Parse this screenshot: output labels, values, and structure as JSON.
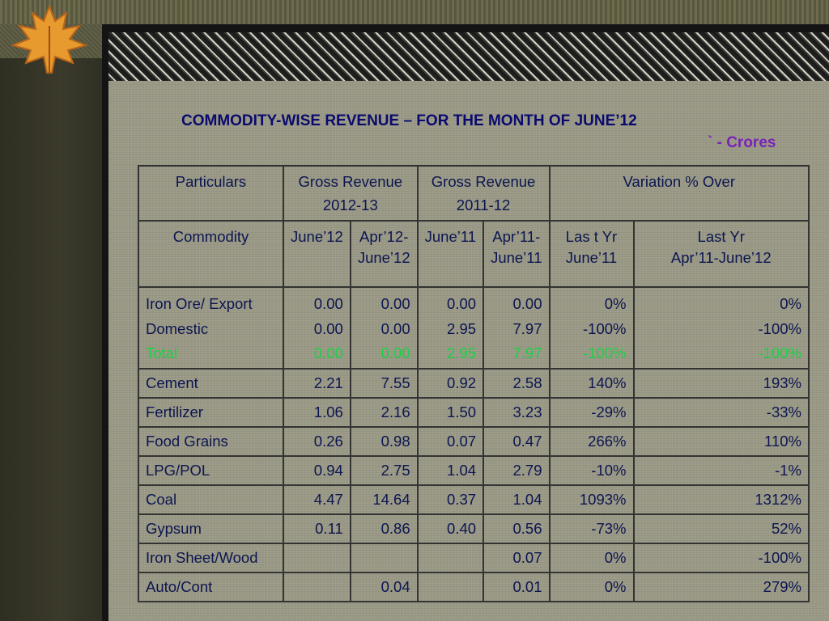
{
  "slide": {
    "title": "COMMODITY-WISE REVENUE – FOR THE MONTH OF JUNE’12",
    "units": "` - Crores"
  },
  "table": {
    "header1": {
      "particulars": "Particulars",
      "gross_2012_13": [
        "Gross Revenue",
        "2012-13"
      ],
      "gross_2011_12": [
        "Gross Revenue",
        "2011-12"
      ],
      "variation": "Variation  % Over"
    },
    "header2": {
      "commodity": "Commodity",
      "june12": "June’12",
      "apr12_june12": "Apr’12-June’12",
      "june11": "June’11",
      "apr11_june11": "Apr’11-June’11",
      "last_yr_june11": [
        "Las t Yr",
        "June’11"
      ],
      "last_yr_apr_june": [
        "Last Yr",
        "Apr’11-June’12"
      ]
    },
    "iron_ore": {
      "labels": [
        "Iron Ore/ Export",
        "Domestic",
        "Total"
      ],
      "june12": [
        "0.00",
        "0.00",
        "0.00"
      ],
      "apr12_june12": [
        "0.00",
        "0.00",
        "0.00"
      ],
      "june11": [
        "0.00",
        "2.95",
        "2.95"
      ],
      "apr11_june11": [
        "0.00",
        "7.97",
        "7.97"
      ],
      "var_june": [
        "0%",
        "-100%",
        "-100%"
      ],
      "var_apr_june": [
        "0%",
        "-100%",
        "-100%"
      ]
    },
    "rows": [
      {
        "name": "Cement",
        "june12": "2.21",
        "apr12_june12": "7.55",
        "june11": "0.92",
        "apr11_june11": "2.58",
        "var_june": "140%",
        "var_apr_june": "193%"
      },
      {
        "name": "Fertilizer",
        "june12": "1.06",
        "apr12_june12": "2.16",
        "june11": "1.50",
        "apr11_june11": "3.23",
        "var_june": "-29%",
        "var_apr_june": "-33%"
      },
      {
        "name": "Food Grains",
        "june12": "0.26",
        "apr12_june12": "0.98",
        "june11": "0.07",
        "apr11_june11": "0.47",
        "var_june": "266%",
        "var_apr_june": "110%"
      },
      {
        "name": "LPG/POL",
        "june12": "0.94",
        "apr12_june12": "2.75",
        "june11": "1.04",
        "apr11_june11": "2.79",
        "var_june": "-10%",
        "var_apr_june": "-1%"
      },
      {
        "name": "Coal",
        "june12": "4.47",
        "apr12_june12": "14.64",
        "june11": "0.37",
        "apr11_june11": "1.04",
        "var_june": "1093%",
        "var_apr_june": "1312%"
      },
      {
        "name": "Gypsum",
        "june12": "0.11",
        "apr12_june12": "0.86",
        "june11": "0.40",
        "apr11_june11": "0.56",
        "var_june": "-73%",
        "var_apr_june": "52%"
      },
      {
        "name": "Iron Sheet/Wood",
        "june12": "",
        "apr12_june12": "",
        "june11": "",
        "apr11_june11": "0.07",
        "var_june": "0%",
        "var_apr_june": "-100%"
      },
      {
        "name": "Auto/Cont",
        "june12": "",
        "apr12_june12": "0.04",
        "june11": "",
        "apr11_june11": "0.01",
        "var_june": "0%",
        "var_apr_june": "279%"
      }
    ]
  },
  "colors": {
    "title": "#0a0a6e",
    "units": "#7a22b8",
    "table_text": "#0b1550",
    "total_text": "#1bd145",
    "panel_bg": "#9b9a87"
  }
}
